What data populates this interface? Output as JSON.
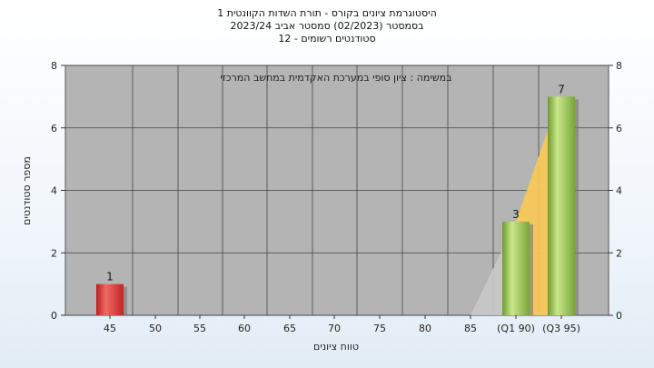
{
  "chart_data": {
    "type": "bar",
    "title_lines": [
      "היסטוגרמת ציונים בקורס - תורת השדות הקוונטית 1",
      "בסמסטר  (02/2023)  סמסטר אביב 2023/24",
      "סטודנטים רשומים - 12"
    ],
    "annotation": "במשימה : ציון סופי במערכת האקדמית במחשב המרכזי",
    "xlabel": "טווח ציונים",
    "ylabel": "מספר סטודנטים",
    "categories": [
      "45",
      "50",
      "55",
      "60",
      "65",
      "70",
      "75",
      "80",
      "85",
      "(Q1 90)",
      "(Q3 95)"
    ],
    "values": [
      1,
      0,
      0,
      0,
      0,
      0,
      0,
      0,
      0,
      3,
      7
    ],
    "bar_colors": [
      "#d9302e",
      null,
      null,
      null,
      null,
      null,
      null,
      null,
      null,
      "#8fbd4a",
      "#8fbd4a"
    ],
    "ylim": [
      0,
      8
    ],
    "yticks": [
      "0",
      "2",
      "4",
      "6",
      "8"
    ],
    "grid": true,
    "plot_background": "#b4b4b4",
    "cumulative_area_colors": [
      "#c8c8c8",
      "#f7c85a"
    ]
  }
}
